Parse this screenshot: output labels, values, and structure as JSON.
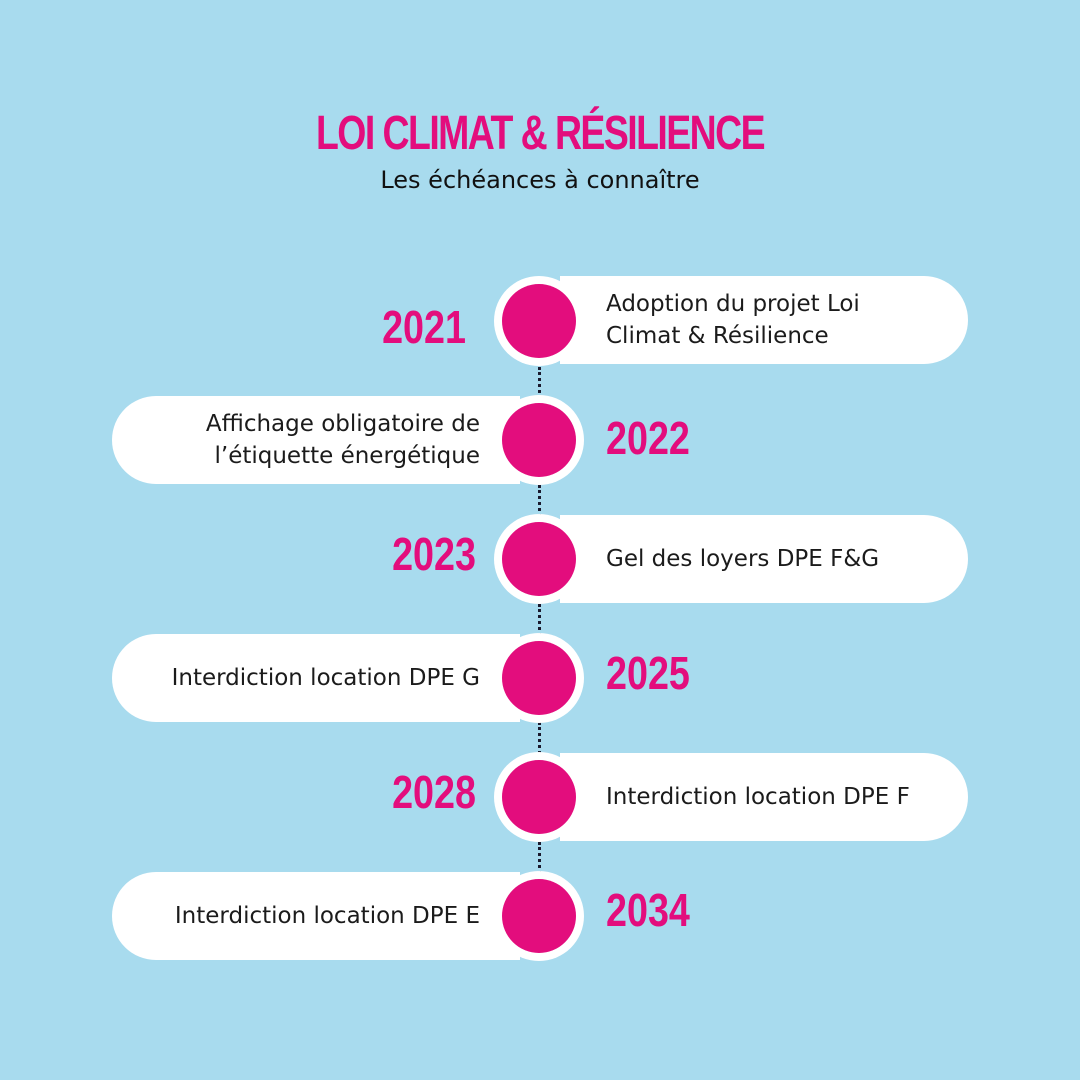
{
  "header": {
    "title": "LOI CLIMAT & RÉSILIENCE",
    "subtitle": "Les échéances à connaître"
  },
  "milestones": [
    {
      "year": "2021",
      "label": "Adoption du projet Loi\nClimat & Résilience",
      "year_side": "left"
    },
    {
      "year": "2022",
      "label": "Affichage obligatoire de\nl’étiquette énergétique",
      "year_side": "right"
    },
    {
      "year": "2023",
      "label": "Gel des loyers DPE F&G",
      "year_side": "left"
    },
    {
      "year": "2025",
      "label": "Interdiction location DPE G",
      "year_side": "right"
    },
    {
      "year": "2028",
      "label": "Interdiction location DPE F",
      "year_side": "left"
    },
    {
      "year": "2034",
      "label": "Interdiction location DPE E",
      "year_side": "right"
    }
  ],
  "colors": {
    "background": "#a8dbee",
    "accent": "#e30d7d",
    "card": "#ffffff",
    "text": "#1b1b1b"
  }
}
